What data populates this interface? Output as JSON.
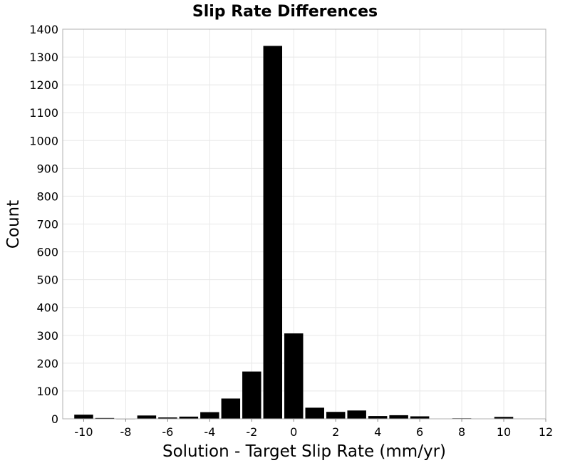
{
  "chart_data": {
    "type": "bar",
    "title": "Slip Rate Differences",
    "xlabel": "Solution - Target Slip Rate (mm/yr)",
    "ylabel": "Count",
    "xlim": [
      -11,
      12
    ],
    "ylim": [
      0,
      1400
    ],
    "xticks": [
      "-10",
      "-8",
      "-6",
      "-4",
      "-2",
      "0",
      "2",
      "4",
      "6",
      "8",
      "10",
      "12"
    ],
    "yticks": [
      "0",
      "100",
      "200",
      "300",
      "400",
      "500",
      "600",
      "700",
      "800",
      "900",
      "1000",
      "1100",
      "1200",
      "1300",
      "1400"
    ],
    "bin_width": 1,
    "bin_centers": [
      -10,
      -9,
      -8,
      -7,
      -6,
      -5,
      -4,
      -3,
      -2,
      -1,
      0,
      1,
      2,
      3,
      4,
      5,
      6,
      7,
      8,
      9,
      10
    ],
    "values": [
      15,
      3,
      1,
      12,
      5,
      8,
      24,
      73,
      170,
      1340,
      307,
      40,
      25,
      30,
      10,
      13,
      9,
      0,
      2,
      0,
      7
    ],
    "grid": true,
    "bar_color": "#000000"
  }
}
